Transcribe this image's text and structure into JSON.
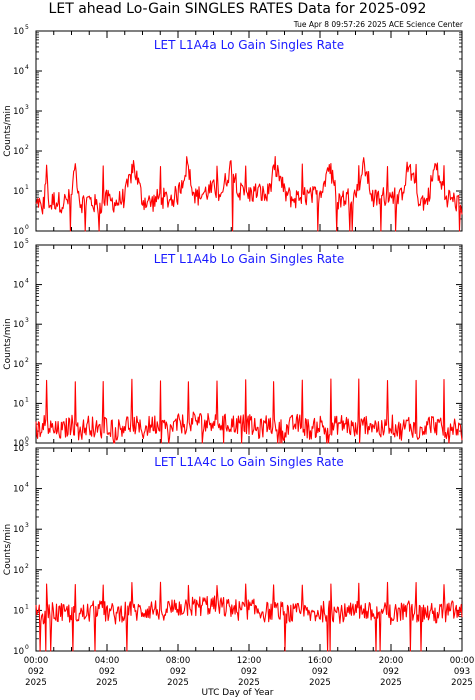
{
  "header": {
    "title": "LET ahead Lo-Gain SINGLES RATES Data for 2025-092",
    "timestamp": "Tue Apr  8 09:57:26 2025 ACE Science Center"
  },
  "x_axis": {
    "label": "UTC Day of Year",
    "ticks": [
      {
        "time": "00:00",
        "day": "092",
        "year": "2025"
      },
      {
        "time": "04:00",
        "day": "092",
        "year": "2025"
      },
      {
        "time": "08:00",
        "day": "092",
        "year": "2025"
      },
      {
        "time": "12:00",
        "day": "092",
        "year": "2025"
      },
      {
        "time": "16:00",
        "day": "092",
        "year": "2025"
      },
      {
        "time": "20:00",
        "day": "092",
        "year": "2025"
      },
      {
        "time": "00:00",
        "day": "093",
        "year": "2025"
      }
    ]
  },
  "colors": {
    "line": "#ff0000",
    "title": "#1a1aff",
    "axis": "#000000"
  },
  "chart_data": [
    {
      "type": "line",
      "title": "LET L1A4a Lo Gain Singles Rate",
      "ylabel": "Counts/min",
      "yscale": "log",
      "ylim": [
        1,
        100000
      ],
      "xlim_hours": [
        0,
        24
      ],
      "x_hours": [
        0,
        0.15,
        0.3,
        0.45,
        0.6,
        0.75,
        1.0,
        1.5,
        2.0,
        2.2,
        2.5,
        3.0,
        3.5,
        4.0,
        4.5,
        5.0,
        5.5,
        6.0,
        6.5,
        7.0,
        7.5,
        8.0,
        8.5,
        9.0,
        9.5,
        10.0,
        10.5,
        11.0,
        11.5,
        12.0,
        12.5,
        13.0,
        13.5,
        14.0,
        14.5,
        15.0,
        15.5,
        16.0,
        16.5,
        17.0,
        17.5,
        18.0,
        18.5,
        19.0,
        19.5,
        20.0,
        20.5,
        21.0,
        21.5,
        22.0,
        22.5,
        23.0,
        23.5,
        24.0
      ],
      "y_values": [
        4,
        6,
        3,
        5,
        38,
        4,
        6,
        5,
        7,
        45,
        5,
        6,
        4,
        6,
        5,
        7,
        45,
        6,
        5,
        7,
        6,
        8,
        45,
        7,
        9,
        11,
        10,
        45,
        9,
        8,
        10,
        7,
        45,
        9,
        6,
        8,
        7,
        9,
        45,
        6,
        7,
        8,
        45,
        6,
        7,
        9,
        6,
        45,
        7,
        5,
        45,
        8,
        6,
        4
      ],
      "spikes_hours": [
        0.6,
        2.2,
        3.8,
        5.4,
        7.0,
        8.6,
        10.2,
        11.8,
        13.4,
        15.0,
        16.6,
        18.2,
        19.8,
        21.4,
        23.0
      ]
    },
    {
      "type": "line",
      "title": "LET L1A4b Lo Gain Singles Rate",
      "ylabel": "Counts/min",
      "yscale": "log",
      "ylim": [
        1,
        100000
      ],
      "xlim_hours": [
        0,
        24
      ],
      "x_hours": [
        0,
        0.5,
        1.0,
        1.5,
        2.0,
        2.5,
        3.0,
        3.5,
        4.0,
        4.5,
        5.0,
        5.5,
        6.0,
        6.5,
        7.0,
        7.5,
        8.0,
        8.5,
        9.0,
        9.5,
        10.0,
        10.5,
        11.0,
        11.5,
        12.0,
        12.5,
        13.0,
        13.5,
        14.0,
        14.5,
        15.0,
        15.5,
        16.0,
        16.5,
        17.0,
        17.5,
        18.0,
        18.5,
        19.0,
        19.5,
        20.0,
        20.5,
        21.0,
        21.5,
        22.0,
        22.5,
        23.0,
        23.5,
        24.0
      ],
      "y_values": [
        2,
        3,
        2,
        2,
        3,
        2,
        3,
        2,
        3,
        2,
        3,
        3,
        2,
        3,
        3,
        2,
        3,
        3,
        4,
        3,
        4,
        3,
        3,
        3,
        3,
        2,
        3,
        3,
        2,
        3,
        3,
        2,
        3,
        2,
        3,
        3,
        2,
        3,
        3,
        2,
        3,
        2,
        3,
        2,
        3,
        3,
        2,
        3,
        2
      ],
      "spikes_hours": [
        0.6,
        2.2,
        3.8,
        5.4,
        7.0,
        8.6,
        10.2,
        11.8,
        13.4,
        15.0,
        16.6,
        18.2,
        19.8,
        21.4,
        23.0
      ]
    },
    {
      "type": "line",
      "title": "LET L1A4c Lo Gain Singles Rate",
      "ylabel": "Counts/min",
      "yscale": "log",
      "ylim": [
        1,
        100000
      ],
      "xlim_hours": [
        0,
        24
      ],
      "x_hours": [
        0,
        0.5,
        1.0,
        1.5,
        2.0,
        2.5,
        3.0,
        3.5,
        4.0,
        4.5,
        5.0,
        5.5,
        6.0,
        6.5,
        7.0,
        7.5,
        8.0,
        8.5,
        9.0,
        9.5,
        10.0,
        10.5,
        11.0,
        11.5,
        12.0,
        12.5,
        13.0,
        13.5,
        14.0,
        14.5,
        15.0,
        15.5,
        16.0,
        16.5,
        17.0,
        17.5,
        18.0,
        18.5,
        19.0,
        19.5,
        20.0,
        20.5,
        21.0,
        21.5,
        22.0,
        22.5,
        23.0,
        23.5,
        24.0
      ],
      "y_values": [
        8,
        7,
        9,
        8,
        9,
        8,
        9,
        10,
        9,
        8,
        10,
        9,
        10,
        11,
        10,
        11,
        12,
        13,
        12,
        14,
        13,
        12,
        11,
        10,
        11,
        10,
        9,
        10,
        9,
        8,
        9,
        8,
        9,
        10,
        9,
        8,
        9,
        10,
        8,
        9,
        8,
        9,
        10,
        8,
        9,
        8,
        9,
        10,
        8
      ],
      "spikes_hours": [
        0.6,
        2.2,
        3.8,
        5.4,
        7.0,
        8.6,
        10.2,
        11.8,
        13.4,
        15.0,
        16.6,
        18.2,
        19.8,
        21.4,
        23.0
      ]
    }
  ]
}
